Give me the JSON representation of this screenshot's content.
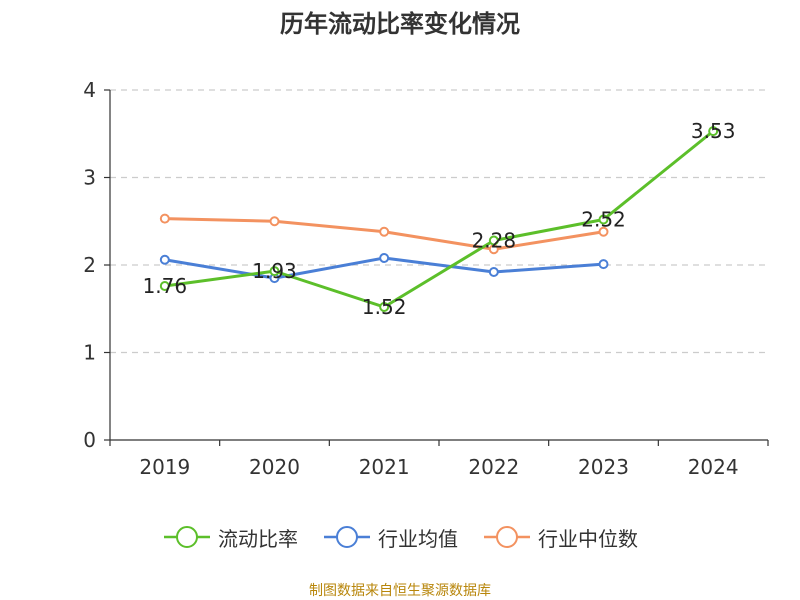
{
  "chart_data": {
    "type": "line",
    "title": "历年流动比率变化情况",
    "categories": [
      "2019",
      "2020",
      "2021",
      "2022",
      "2023",
      "2024"
    ],
    "ylim": [
      0,
      4
    ],
    "yticks": [
      0,
      1,
      2,
      3,
      4
    ],
    "grid": true,
    "legend_position": "bottom",
    "series": [
      {
        "name": "流动比率",
        "color": "#5cbf2a",
        "values": [
          1.76,
          1.93,
          1.52,
          2.28,
          2.52,
          3.53
        ],
        "data_labels": [
          "1.76",
          "1.93",
          "1.52",
          "2.28",
          "2.52",
          "3.53"
        ]
      },
      {
        "name": "行业均值",
        "color": "#4a7fd6",
        "values": [
          2.06,
          1.85,
          2.08,
          1.92,
          2.01,
          null
        ]
      },
      {
        "name": "行业中位数",
        "color": "#f39260",
        "values": [
          2.53,
          2.5,
          2.38,
          2.18,
          2.38,
          null
        ]
      }
    ]
  },
  "footer": {
    "source": "制图数据来自恒生聚源数据库"
  }
}
